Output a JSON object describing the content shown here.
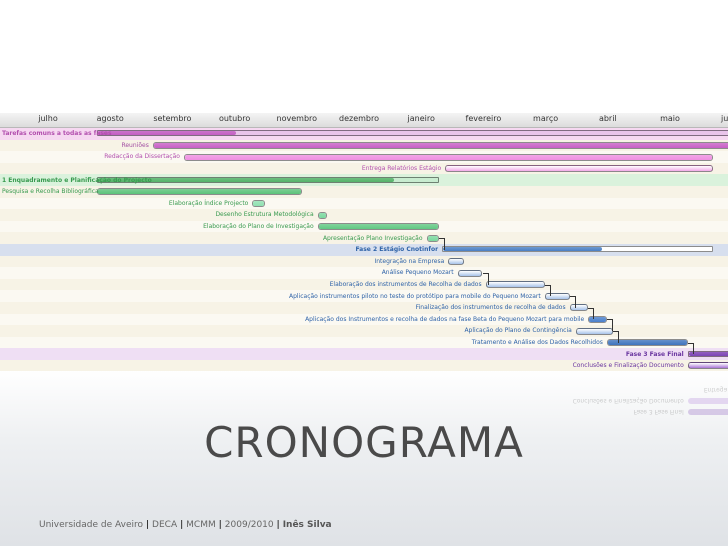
{
  "months": [
    "julho",
    "agosto",
    "setembro",
    "outubro",
    "novembro",
    "dezembro",
    "janeiro",
    "fevereiro",
    "março",
    "abril",
    "maio",
    "junho"
  ],
  "tasks": [
    {
      "label": "Tarefas comuns a todas as fases",
      "start": 1.3,
      "end": 11.9,
      "kind": "summary",
      "color": "#c35ec2",
      "progress": 0.21,
      "row": "phase",
      "label_color": "#b24fae",
      "label_side": "left"
    },
    {
      "label": "Reuniões",
      "start": 2.2,
      "end": 11.9,
      "kind": "task",
      "color": "#c75fc5",
      "progress": 1,
      "row": "even",
      "label_color": "#a24ea2",
      "label_side": "left"
    },
    {
      "label": "Redacção da Dissertação",
      "start": 2.7,
      "end": 11.2,
      "kind": "task",
      "color": "#ef8fe1",
      "progress": 1,
      "row": "odd",
      "label_color": "#b24fae",
      "label_side": "left"
    },
    {
      "label": "Entrega Relatórios Estágio",
      "start": 6.9,
      "end": 11.2,
      "kind": "task",
      "color": "#f2a9e8",
      "progress": 0,
      "row": "even",
      "label_color": "#b24fae",
      "label_side": "left"
    },
    {
      "label": "1 Enquadramento e Planificação do Projecto",
      "start": 1.3,
      "end": 6.8,
      "kind": "summary",
      "color": "#55b36a",
      "progress": 0.87,
      "row": "p1",
      "label_color": "#389a4f",
      "label_side": "left"
    },
    {
      "label": "Pesquisa e Recolha Bibliográfica",
      "start": 1.3,
      "end": 4.6,
      "kind": "task",
      "color": "#5cc27a",
      "progress": 1,
      "row": "even",
      "label_color": "#389a4f",
      "label_side": "left"
    },
    {
      "label": "Elaboração Índice Projecto",
      "start": 3.8,
      "end": 4.0,
      "kind": "task",
      "color": "#8fe0b0",
      "progress": 1,
      "row": "odd",
      "label_color": "#389a4f",
      "label_side": "left"
    },
    {
      "label": "Desenho Estrutura Metodológica",
      "start": 4.85,
      "end": 5.0,
      "kind": "task",
      "color": "#7ad89d",
      "progress": 1,
      "row": "even",
      "label_color": "#389a4f",
      "label_side": "left"
    },
    {
      "label": "Elaboração do Plano de Investigação",
      "start": 4.85,
      "end": 6.8,
      "kind": "task",
      "color": "#61c884",
      "progress": 1,
      "row": "odd",
      "label_color": "#389a4f",
      "label_side": "left"
    },
    {
      "label": "Apresentação Plano Investigação",
      "start": 6.6,
      "end": 6.8,
      "kind": "task",
      "color": "#7ad89d",
      "progress": 1,
      "row": "even",
      "label_color": "#389a4f",
      "label_side": "left"
    },
    {
      "label": "Fase 2 Estágio Cnotinfor",
      "start": 6.85,
      "end": 11.2,
      "kind": "summary",
      "color": "#4a7fc4",
      "progress": 0.59,
      "row": "p2",
      "label_color": "#2f63a8",
      "label_side": "left"
    },
    {
      "label": "Integração na Empresa",
      "start": 6.95,
      "end": 7.2,
      "kind": "task",
      "color": "#a7c3ea",
      "progress": 0,
      "row": "even",
      "label_color": "#2f63a8",
      "label_side": "left"
    },
    {
      "label": "Análise Pequeno Mozart",
      "start": 7.1,
      "end": 7.5,
      "kind": "task",
      "color": "#a7c3ea",
      "progress": 0,
      "row": "odd",
      "label_color": "#2f63a8",
      "label_side": "left"
    },
    {
      "label": "Elaboração dos instrumentos de Recolha de dados",
      "start": 7.55,
      "end": 8.5,
      "kind": "task",
      "color": "#a7c3ea",
      "progress": 0,
      "row": "even",
      "label_color": "#2f63a8",
      "label_side": "left"
    },
    {
      "label": "Aplicação instrumentos piloto no teste do protótipo para mobile do Pequeno Mozart",
      "start": 8.5,
      "end": 8.9,
      "kind": "task",
      "color": "#a7c3ea",
      "progress": 0,
      "row": "odd",
      "label_color": "#2f63a8",
      "label_side": "left"
    },
    {
      "label": "Finalização dos instrumentos de recolha de dados",
      "start": 8.9,
      "end": 9.2,
      "kind": "task",
      "color": "#a7c3ea",
      "progress": 0,
      "row": "even",
      "label_color": "#2f63a8",
      "label_side": "left"
    },
    {
      "label": "Aplicação dos Instrumentos e recolha de dados na fase Beta do Pequeno Mozart para mobile",
      "start": 9.2,
      "end": 9.5,
      "kind": "task",
      "color": "#4a80cc",
      "progress": 1,
      "row": "odd",
      "label_color": "#2f63a8",
      "label_side": "left"
    },
    {
      "label": "Aplicação do Plano de Contingência",
      "start": 9.0,
      "end": 9.6,
      "kind": "task",
      "color": "#a7c3ea",
      "progress": 0,
      "row": "even",
      "label_color": "#2f63a8",
      "label_side": "left"
    },
    {
      "label": "Tratamento e Análise dos Dados Recolhidos",
      "start": 9.5,
      "end": 10.8,
      "kind": "task",
      "color": "#3f74bd",
      "progress": 1,
      "row": "odd",
      "label_color": "#2f63a8",
      "label_side": "left"
    },
    {
      "label": "Fase 3 Fase Final",
      "start": 10.8,
      "end": 11.5,
      "kind": "summary",
      "color": "#7c45b5",
      "progress": 1,
      "row": "p3",
      "label_color": "#6a36a0",
      "label_side": "left"
    },
    {
      "label": "Conclusões e Finalização Documento",
      "start": 10.8,
      "end": 11.5,
      "kind": "task",
      "color": "#a974d6",
      "progress": 0,
      "row": "even",
      "label_color": "#6a36a0",
      "label_side": "left"
    },
    {
      "label": "Entrega",
      "start": 11.5,
      "end": 11.7,
      "kind": "task",
      "color": "#8a52c6",
      "progress": 1,
      "row": "odd",
      "label_color": "#6a36a0",
      "label_side": "left"
    },
    {
      "label": "",
      "start": 11.5,
      "end": 11.7,
      "kind": "task",
      "color": "#8a52c6",
      "progress": 1,
      "row": "even",
      "label_color": "#6a36a0",
      "label_side": "left"
    }
  ],
  "links": [
    {
      "from": 3,
      "to": 3
    },
    {
      "from": 9,
      "to": 10
    },
    {
      "from": 12,
      "to": 13
    },
    {
      "from": 13,
      "to": 14
    },
    {
      "from": 14,
      "to": 15
    },
    {
      "from": 15,
      "to": 16
    },
    {
      "from": 16,
      "to": 17
    },
    {
      "from": 17,
      "to": 18
    },
    {
      "from": 18,
      "to": 19
    },
    {
      "from": 19,
      "to": 21
    }
  ],
  "title": "CRONOGRAMA",
  "footer": {
    "org": "Universidade de Aveiro",
    "dept": "DECA",
    "course": "MCMM",
    "year": "2009/2010",
    "author": "Inês Silva",
    "sep": "|"
  }
}
